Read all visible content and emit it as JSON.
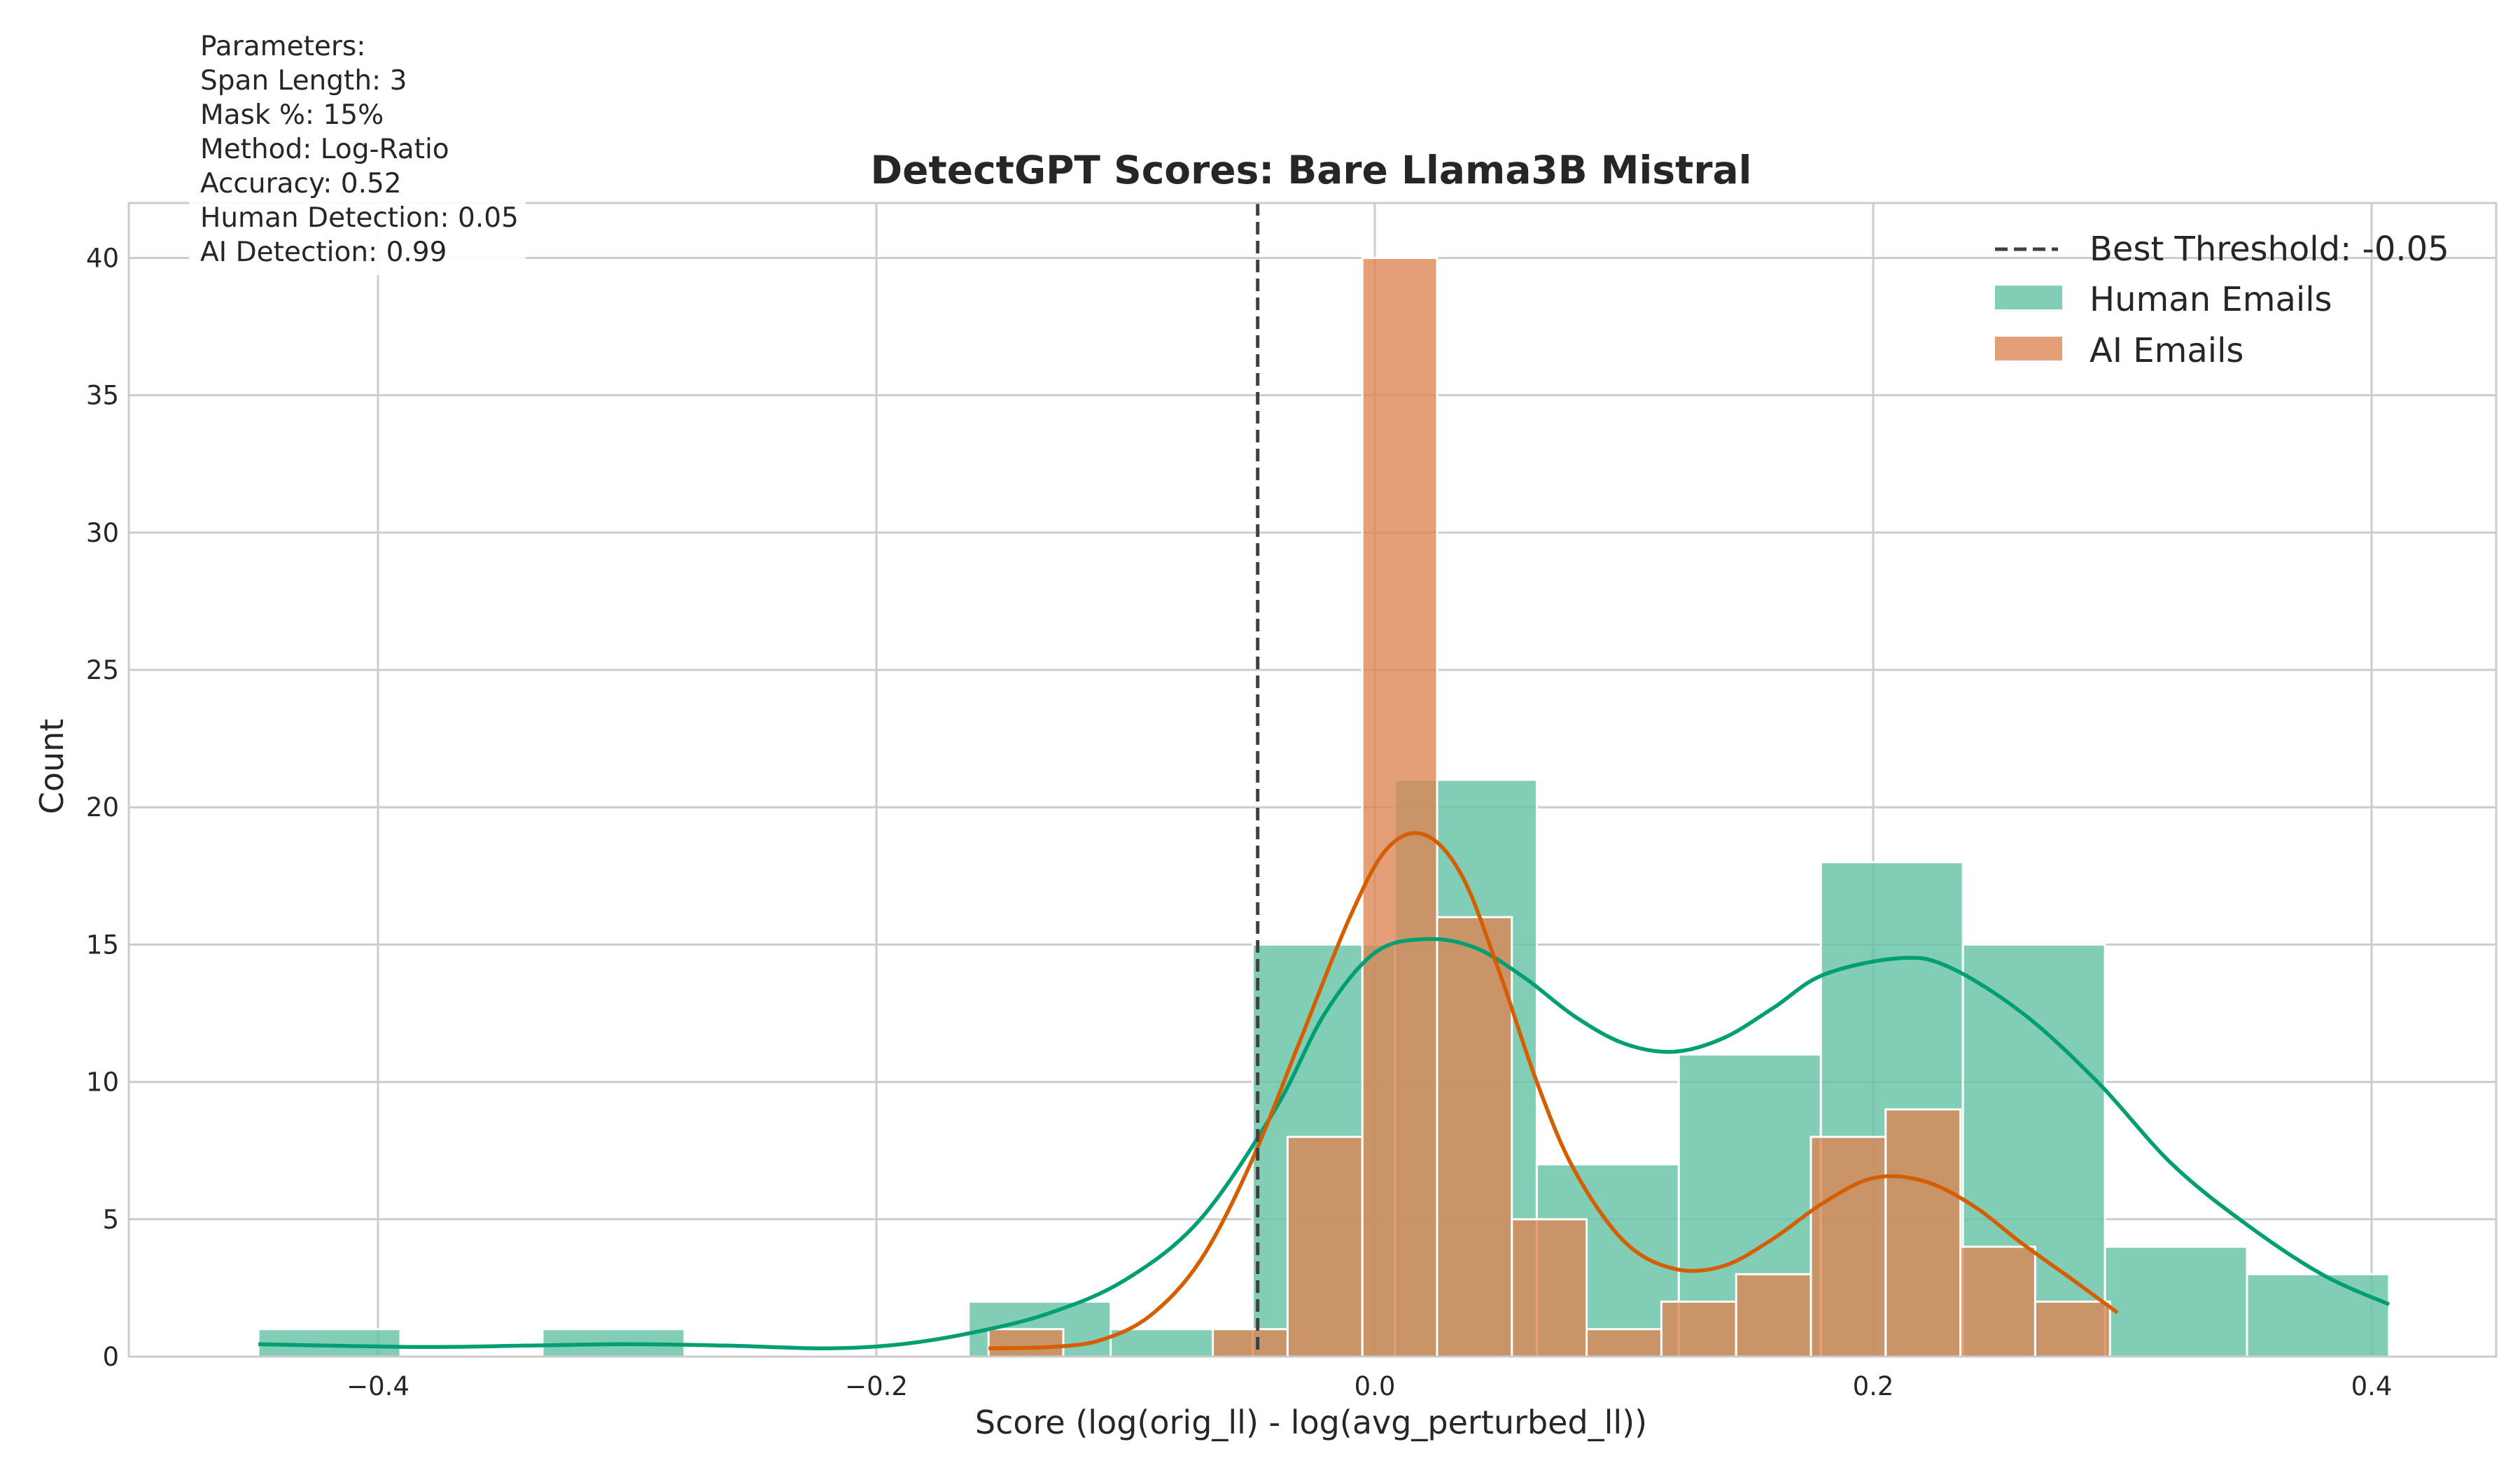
{
  "chart_data": {
    "type": "histogram",
    "title": "DetectGPT Scores: Bare Llama3B Mistral",
    "xlabel": "Score (log(orig_ll) - log(avg_perturbed_ll))",
    "ylabel": "Count",
    "xlim": [
      -0.5,
      0.45
    ],
    "ylim": [
      0,
      42
    ],
    "x_ticks": [
      -0.4,
      -0.2,
      0.0,
      0.2,
      0.4
    ],
    "x_tick_labels": [
      "−0.4",
      "−0.2",
      "0.0",
      "0.2",
      "0.4"
    ],
    "y_ticks": [
      0,
      5,
      10,
      15,
      20,
      25,
      30,
      35,
      40
    ],
    "y_tick_labels": [
      "0",
      "5",
      "10",
      "15",
      "20",
      "25",
      "30",
      "35",
      "40"
    ],
    "grid": true,
    "legend_position": "top-right",
    "threshold": {
      "label": "Best Threshold: -0.05",
      "value": -0.047,
      "color": "#404040"
    },
    "series": [
      {
        "name": "Human Emails",
        "color": "#66c2a5",
        "kde_color": "#009e73",
        "bins": [
          {
            "x0": -0.448,
            "x1": -0.391,
            "count": 1
          },
          {
            "x0": -0.334,
            "x1": -0.277,
            "count": 1
          },
          {
            "x0": -0.163,
            "x1": -0.106,
            "count": 2
          },
          {
            "x0": -0.106,
            "x1": -0.049,
            "count": 1
          },
          {
            "x0": -0.049,
            "x1": 0.008,
            "count": 15
          },
          {
            "x0": 0.008,
            "x1": 0.065,
            "count": 21
          },
          {
            "x0": 0.065,
            "x1": 0.122,
            "count": 7
          },
          {
            "x0": 0.122,
            "x1": 0.179,
            "count": 11
          },
          {
            "x0": 0.179,
            "x1": 0.236,
            "count": 18
          },
          {
            "x0": 0.236,
            "x1": 0.293,
            "count": 15
          },
          {
            "x0": 0.293,
            "x1": 0.35,
            "count": 4
          },
          {
            "x0": 0.35,
            "x1": 0.407,
            "count": 3
          }
        ],
        "kde": [
          [
            -0.448,
            0.45
          ],
          [
            -0.42,
            0.4
          ],
          [
            -0.38,
            0.35
          ],
          [
            -0.34,
            0.4
          ],
          [
            -0.3,
            0.45
          ],
          [
            -0.26,
            0.4
          ],
          [
            -0.22,
            0.3
          ],
          [
            -0.19,
            0.45
          ],
          [
            -0.16,
            0.9
          ],
          [
            -0.13,
            1.6
          ],
          [
            -0.1,
            2.8
          ],
          [
            -0.07,
            5.0
          ],
          [
            -0.04,
            9.0
          ],
          [
            -0.02,
            12.5
          ],
          [
            0.0,
            14.7
          ],
          [
            0.02,
            15.2
          ],
          [
            0.04,
            14.9
          ],
          [
            0.06,
            13.8
          ],
          [
            0.08,
            12.4
          ],
          [
            0.1,
            11.4
          ],
          [
            0.12,
            11.1
          ],
          [
            0.14,
            11.6
          ],
          [
            0.16,
            12.7
          ],
          [
            0.18,
            13.9
          ],
          [
            0.21,
            14.5
          ],
          [
            0.23,
            14.2
          ],
          [
            0.26,
            12.5
          ],
          [
            0.29,
            10.0
          ],
          [
            0.32,
            7.0
          ],
          [
            0.35,
            4.8
          ],
          [
            0.38,
            3.0
          ],
          [
            0.407,
            1.9
          ]
        ]
      },
      {
        "name": "AI Emails",
        "color": "#dd8452",
        "kde_color": "#d55e00",
        "bins": [
          {
            "x0": -0.155,
            "x1": -0.125,
            "count": 1
          },
          {
            "x0": -0.065,
            "x1": -0.035,
            "count": 1
          },
          {
            "x0": -0.035,
            "x1": -0.005,
            "count": 8
          },
          {
            "x0": -0.005,
            "x1": 0.025,
            "count": 40
          },
          {
            "x0": 0.025,
            "x1": 0.055,
            "count": 16
          },
          {
            "x0": 0.055,
            "x1": 0.085,
            "count": 5
          },
          {
            "x0": 0.085,
            "x1": 0.115,
            "count": 1
          },
          {
            "x0": 0.115,
            "x1": 0.145,
            "count": 2
          },
          {
            "x0": 0.145,
            "x1": 0.175,
            "count": 3
          },
          {
            "x0": 0.175,
            "x1": 0.205,
            "count": 8
          },
          {
            "x0": 0.205,
            "x1": 0.235,
            "count": 9
          },
          {
            "x0": 0.235,
            "x1": 0.265,
            "count": 4
          },
          {
            "x0": 0.265,
            "x1": 0.295,
            "count": 2
          }
        ],
        "kde": [
          [
            -0.155,
            0.3
          ],
          [
            -0.13,
            0.35
          ],
          [
            -0.11,
            0.6
          ],
          [
            -0.09,
            1.5
          ],
          [
            -0.07,
            3.5
          ],
          [
            -0.05,
            7.0
          ],
          [
            -0.03,
            11.5
          ],
          [
            -0.01,
            16.0
          ],
          [
            0.005,
            18.5
          ],
          [
            0.02,
            19.0
          ],
          [
            0.035,
            17.5
          ],
          [
            0.05,
            14.0
          ],
          [
            0.065,
            10.0
          ],
          [
            0.08,
            6.8
          ],
          [
            0.1,
            4.2
          ],
          [
            0.12,
            3.2
          ],
          [
            0.14,
            3.3
          ],
          [
            0.16,
            4.3
          ],
          [
            0.18,
            5.6
          ],
          [
            0.2,
            6.5
          ],
          [
            0.22,
            6.4
          ],
          [
            0.24,
            5.5
          ],
          [
            0.26,
            4.1
          ],
          [
            0.28,
            2.8
          ],
          [
            0.298,
            1.6
          ]
        ]
      }
    ],
    "annotation": {
      "lines": [
        "Parameters:",
        "Span Length: 3",
        "Mask %: 15%",
        "Method: Log-Ratio",
        "Accuracy: 0.52",
        "Human Detection: 0.05",
        "AI Detection: 0.99"
      ]
    }
  }
}
